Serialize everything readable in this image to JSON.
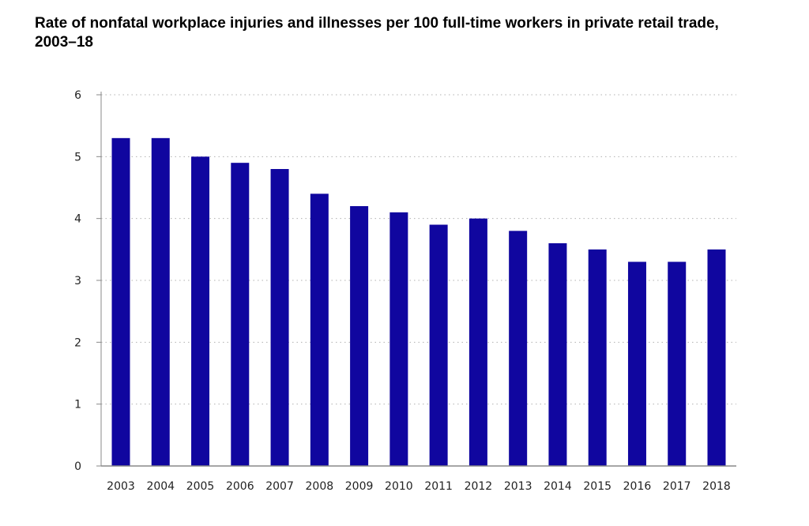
{
  "chart_data": {
    "type": "bar",
    "title": "Rate of nonfatal workplace injuries and illnesses per 100 full-time workers in private retail trade, 2003–18",
    "xlabel": "",
    "ylabel": "",
    "categories": [
      "2003",
      "2004",
      "2005",
      "2006",
      "2007",
      "2008",
      "2009",
      "2010",
      "2011",
      "2012",
      "2013",
      "2014",
      "2015",
      "2016",
      "2017",
      "2018"
    ],
    "values": [
      5.3,
      5.3,
      5.0,
      4.9,
      4.8,
      4.4,
      4.2,
      4.1,
      3.9,
      4.0,
      3.8,
      3.6,
      3.5,
      3.3,
      3.3,
      3.5
    ],
    "ylim": [
      0,
      6
    ],
    "yticks": [
      0,
      1,
      2,
      3,
      4,
      5,
      6
    ],
    "grid": true,
    "legend": "none",
    "colors": {
      "bar": "#10069f",
      "axis": "#888888",
      "grid": "#b0b0b0"
    }
  }
}
